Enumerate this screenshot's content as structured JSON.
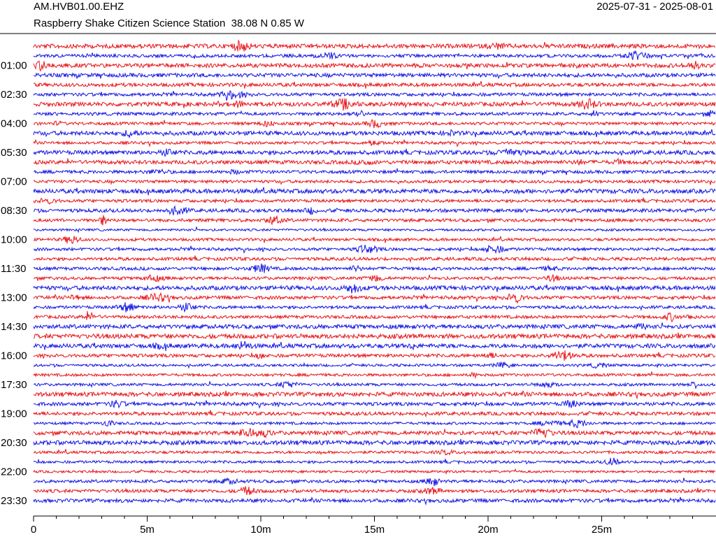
{
  "chart_data": {
    "type": "helicorder",
    "title": "AM.HVB01.00.EHZ",
    "subtitle": "Raspberry Shake Citizen Science Station  38.08 N 0.85 W",
    "date_range": "2025-07-31 - 2025-08-01",
    "categories": [
      null,
      null,
      "01:00",
      null,
      null,
      "02:30",
      null,
      null,
      "04:00",
      null,
      null,
      "05:30",
      null,
      null,
      "07:00",
      null,
      null,
      "08:30",
      null,
      null,
      "10:00",
      null,
      null,
      "11:30",
      null,
      null,
      "13:00",
      null,
      null,
      "14:30",
      null,
      null,
      "16:00",
      null,
      null,
      "17:30",
      null,
      null,
      "19:00",
      null,
      null,
      "20:30",
      null,
      null,
      "22:00",
      null,
      null,
      "23:30"
    ],
    "colors": [
      "#e8161c",
      "#1616e6"
    ],
    "xlim": [
      0,
      30
    ],
    "xticks": [
      0,
      {
        "value": 5,
        "label": "5m"
      },
      {
        "value": 10,
        "label": "10m"
      },
      {
        "value": 15,
        "label": "15m"
      },
      {
        "value": 20,
        "label": "20m"
      },
      {
        "value": 25,
        "label": "25m"
      }
    ],
    "xminorticks": [
      1,
      2,
      3,
      4,
      6,
      7,
      8,
      9,
      11,
      12,
      13,
      14,
      16,
      17,
      18,
      19,
      21,
      22,
      23,
      24,
      26,
      27,
      28,
      29
    ]
  }
}
